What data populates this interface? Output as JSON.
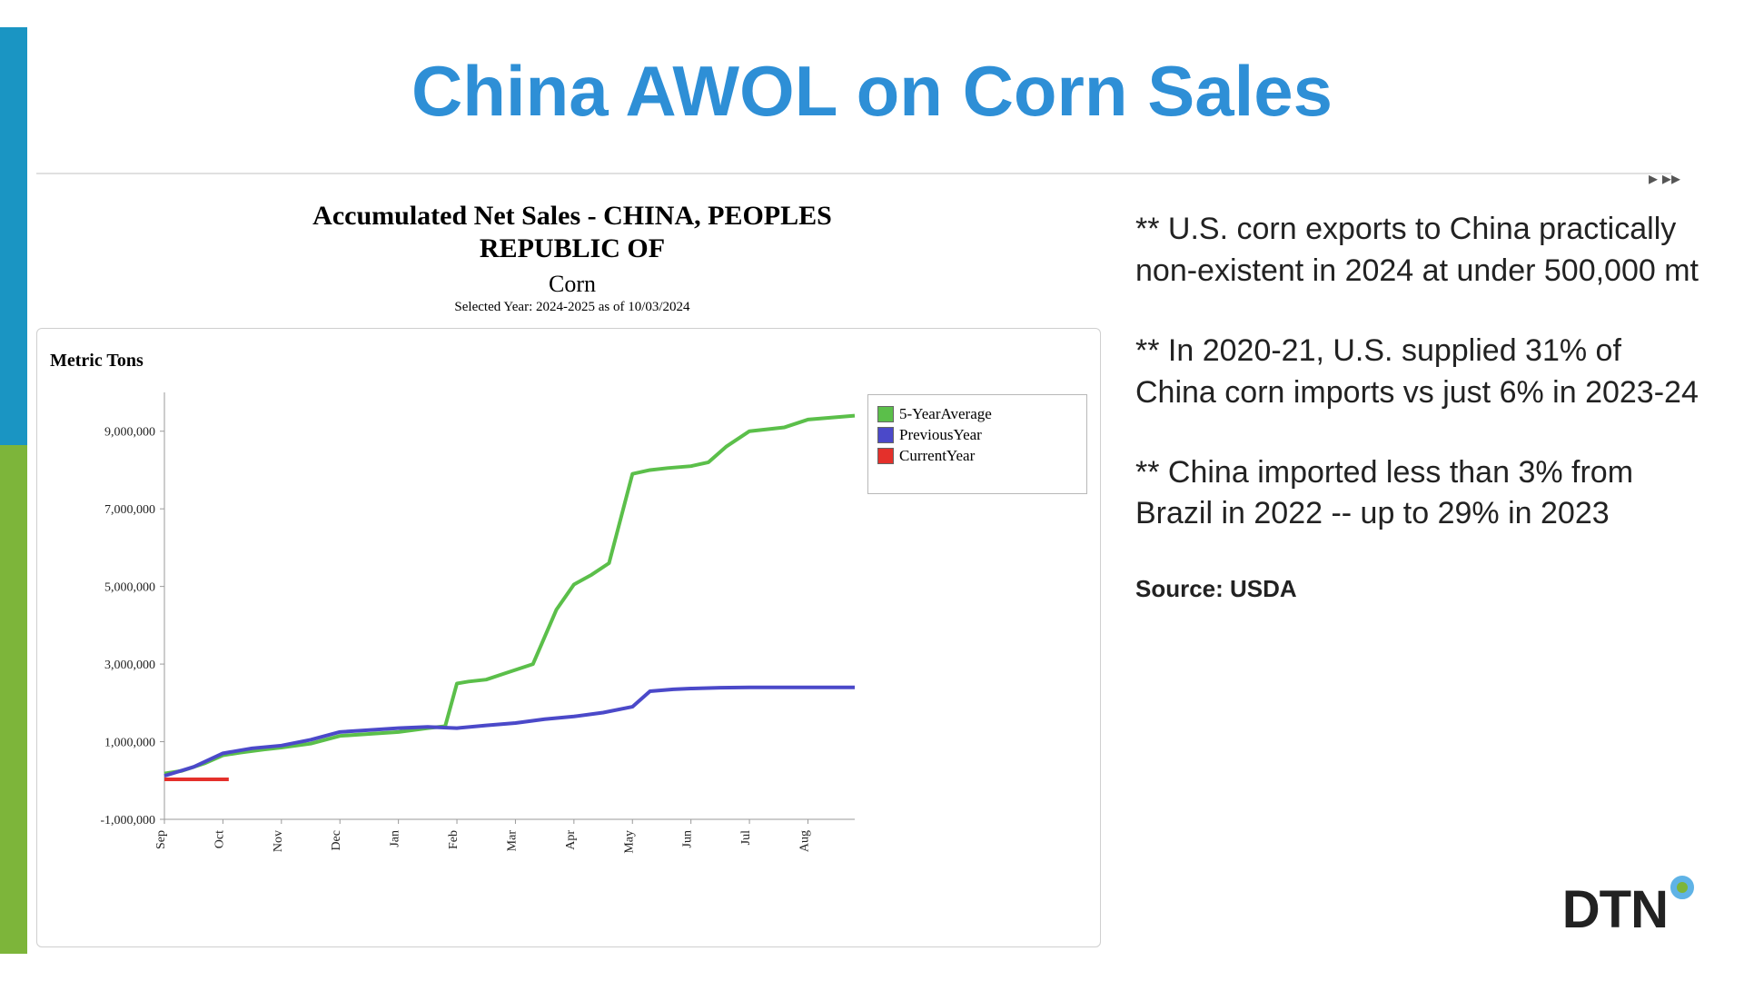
{
  "title": {
    "text": "China AWOL on Corn Sales",
    "color": "#2e8fd6"
  },
  "accent": {
    "blue": "#1a95c3",
    "green": "#7db53a"
  },
  "chart": {
    "title_line1": "Accumulated Net Sales - CHINA, PEOPLES",
    "title_line2": "REPUBLIC OF",
    "crop": "Corn",
    "note": "Selected Year: 2024-2025 as of 10/03/2024",
    "type": "line",
    "y_label": "Metric Tons",
    "ylim_min": -1000000,
    "ylim_max": 10000000,
    "y_ticks": [
      {
        "v": -1000000,
        "label": "-1,000,000"
      },
      {
        "v": 1000000,
        "label": "1,000,000"
      },
      {
        "v": 3000000,
        "label": "3,000,000"
      },
      {
        "v": 5000000,
        "label": "5,000,000"
      },
      {
        "v": 7000000,
        "label": "7,000,000"
      },
      {
        "v": 9000000,
        "label": "9,000,000"
      }
    ],
    "x_labels": [
      "Sep",
      "Oct",
      "Nov",
      "Dec",
      "Jan",
      "Feb",
      "Mar",
      "Apr",
      "May",
      "Jun",
      "Jul",
      "Aug"
    ],
    "axis_color": "#9a9a9a",
    "grid_color": "#e6e6e6",
    "legend": [
      {
        "name": "5-YearAverage",
        "color": "#5bbf4a"
      },
      {
        "name": "PreviousYear",
        "color": "#4b49c9"
      },
      {
        "name": "CurrentYear",
        "color": "#e4302b"
      }
    ],
    "series": {
      "five_year": {
        "color": "#5bbf4a",
        "width": 4,
        "points": [
          [
            0,
            180000
          ],
          [
            0.3,
            250000
          ],
          [
            0.7,
            450000
          ],
          [
            1,
            650000
          ],
          [
            1.3,
            720000
          ],
          [
            1.7,
            800000
          ],
          [
            2,
            850000
          ],
          [
            2.5,
            950000
          ],
          [
            3,
            1150000
          ],
          [
            3.5,
            1200000
          ],
          [
            4,
            1250000
          ],
          [
            4.5,
            1350000
          ],
          [
            4.8,
            1400000
          ],
          [
            5,
            2500000
          ],
          [
            5.2,
            2550000
          ],
          [
            5.5,
            2600000
          ],
          [
            5.8,
            2750000
          ],
          [
            6,
            2850000
          ],
          [
            6.3,
            3000000
          ],
          [
            6.7,
            4400000
          ],
          [
            7,
            5050000
          ],
          [
            7.3,
            5300000
          ],
          [
            7.6,
            5600000
          ],
          [
            8,
            7900000
          ],
          [
            8.3,
            8000000
          ],
          [
            8.6,
            8050000
          ],
          [
            9,
            8100000
          ],
          [
            9.3,
            8200000
          ],
          [
            9.6,
            8600000
          ],
          [
            10,
            9000000
          ],
          [
            10.3,
            9050000
          ],
          [
            10.6,
            9100000
          ],
          [
            11,
            9300000
          ],
          [
            11.4,
            9350000
          ],
          [
            11.8,
            9400000
          ]
        ]
      },
      "previous_year": {
        "color": "#4b49c9",
        "width": 4,
        "points": [
          [
            0,
            120000
          ],
          [
            0.5,
            350000
          ],
          [
            1,
            700000
          ],
          [
            1.5,
            830000
          ],
          [
            2,
            900000
          ],
          [
            2.5,
            1050000
          ],
          [
            3,
            1250000
          ],
          [
            3.5,
            1300000
          ],
          [
            4,
            1350000
          ],
          [
            4.5,
            1380000
          ],
          [
            5,
            1350000
          ],
          [
            5.5,
            1420000
          ],
          [
            6,
            1480000
          ],
          [
            6.5,
            1580000
          ],
          [
            7,
            1650000
          ],
          [
            7.5,
            1750000
          ],
          [
            8,
            1900000
          ],
          [
            8.3,
            2300000
          ],
          [
            8.7,
            2350000
          ],
          [
            9,
            2370000
          ],
          [
            9.5,
            2390000
          ],
          [
            10,
            2400000
          ],
          [
            10.5,
            2400000
          ],
          [
            11,
            2400000
          ],
          [
            11.5,
            2400000
          ],
          [
            11.8,
            2400000
          ]
        ]
      },
      "current_year": {
        "color": "#e4302b",
        "width": 4,
        "points": [
          [
            0,
            30000
          ],
          [
            0.3,
            30000
          ],
          [
            0.7,
            30000
          ],
          [
            1.1,
            30000
          ]
        ]
      }
    }
  },
  "bullets": [
    "**  U.S. corn exports to China practically non-existent in 2024 at under 500,000 mt",
    "**  In 2020-21, U.S. supplied 31% of China corn imports vs just 6% in 2023-24",
    "**  China imported less than 3% from Brazil in 2022 -- up to 29% in 2023"
  ],
  "source": "Source: USDA",
  "logo": {
    "text": "DTN",
    "dot_outer": "#5fb3e6",
    "dot_inner": "#7db53a"
  }
}
